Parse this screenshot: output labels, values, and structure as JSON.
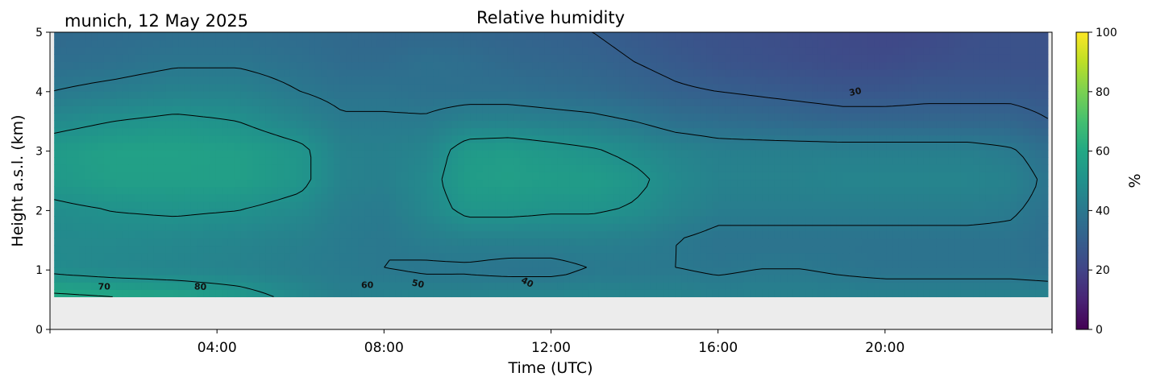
{
  "location_date": "munich, 12 May 2025",
  "chart_data": {
    "type": "heatmap",
    "title": "Relative humidity",
    "xlabel": "Time (UTC)",
    "ylabel": "Height a.s.l. (km)",
    "xlim_hours": [
      0,
      24
    ],
    "ylim": [
      0,
      5
    ],
    "x_ticks": [
      {
        "hour": 4,
        "label": "04:00"
      },
      {
        "hour": 8,
        "label": "08:00"
      },
      {
        "hour": 12,
        "label": "12:00"
      },
      {
        "hour": 16,
        "label": "16:00"
      },
      {
        "hour": 20,
        "label": "20:00"
      }
    ],
    "y_ticks": [
      0,
      1,
      2,
      3,
      4,
      5
    ],
    "data_x_range_hours": [
      0.1,
      23.9
    ],
    "data_y_range": [
      0.55,
      5
    ],
    "no_data_color": "#ececec",
    "colorbar": {
      "label": "%",
      "range": [
        0,
        100
      ],
      "ticks": [
        0,
        20,
        40,
        60,
        80,
        100
      ],
      "colormap": "viridis"
    },
    "contour_levels": [
      30,
      40,
      50,
      60,
      70,
      80
    ],
    "contour_labels": [
      {
        "text": "70",
        "x_hour": 1.3,
        "y": 0.67,
        "rotate": 0
      },
      {
        "text": "80",
        "x_hour": 3.6,
        "y": 0.67,
        "rotate": 3
      },
      {
        "text": "60",
        "x_hour": 7.6,
        "y": 0.7,
        "rotate": 0
      },
      {
        "text": "50",
        "x_hour": 8.8,
        "y": 0.72,
        "rotate": 12
      },
      {
        "text": "40",
        "x_hour": 11.4,
        "y": 0.75,
        "rotate": 28
      },
      {
        "text": "30",
        "x_hour": 19.3,
        "y": 3.95,
        "rotate": -12
      }
    ],
    "profile_hours": [
      0,
      1.5,
      3,
      4.5,
      6,
      7,
      8,
      9,
      10,
      11,
      12,
      13,
      14,
      15,
      16,
      17,
      18,
      19,
      20,
      21,
      22,
      23,
      24
    ],
    "profile_heights_km": [
      0.55,
      1.0,
      1.5,
      2.0,
      2.5,
      3.0,
      3.5,
      4.0,
      4.5,
      5.0
    ],
    "rh_values": [
      [
        62,
        60,
        58,
        54,
        47,
        43,
        44,
        45,
        45,
        46,
        46,
        46,
        45,
        45,
        44,
        44,
        44,
        44,
        44,
        44,
        44,
        44,
        44
      ],
      [
        48,
        46,
        45,
        44,
        42,
        41,
        40,
        39,
        39,
        38,
        38,
        40,
        40,
        40,
        39,
        40,
        40,
        39,
        38,
        38,
        38,
        38,
        37
      ],
      [
        47,
        47,
        46,
        45,
        43,
        41,
        40,
        42,
        43,
        43,
        43,
        43,
        42,
        40,
        38,
        38,
        38,
        38,
        38,
        38,
        38,
        38,
        36
      ],
      [
        48,
        50,
        51,
        50,
        47,
        42,
        41,
        46,
        52,
        52,
        51,
        51,
        49,
        45,
        42,
        42,
        42,
        42,
        42,
        42,
        42,
        41,
        37
      ],
      [
        53,
        56,
        56,
        56,
        52,
        44,
        43,
        47,
        55,
        56,
        55,
        55,
        52,
        47,
        44,
        44,
        44,
        45,
        45,
        45,
        45,
        44,
        38
      ],
      [
        54,
        57,
        57,
        56,
        52,
        44,
        43,
        45,
        54,
        55,
        53,
        51,
        48,
        45,
        43,
        43,
        43,
        43,
        43,
        43,
        43,
        41,
        36
      ],
      [
        47,
        50,
        52,
        50,
        45,
        41,
        41,
        41,
        44,
        44,
        43,
        42,
        40,
        37,
        36,
        35,
        34,
        33,
        33,
        33,
        33,
        33,
        30
      ],
      [
        40,
        42,
        44,
        44,
        40,
        38,
        38,
        37,
        37,
        37,
        36,
        35,
        33,
        31,
        30,
        29,
        28,
        27,
        27,
        28,
        28,
        28,
        27
      ],
      [
        36,
        37,
        39,
        39,
        37,
        35,
        35,
        37,
        36,
        34,
        33,
        32,
        30,
        28,
        26,
        25,
        24,
        23,
        23,
        24,
        25,
        25,
        25
      ],
      [
        34,
        35,
        36,
        36,
        35,
        34,
        33,
        33,
        33,
        32,
        31,
        30,
        28,
        26,
        25,
        24,
        23,
        22,
        21,
        22,
        24,
        25,
        25
      ]
    ]
  }
}
